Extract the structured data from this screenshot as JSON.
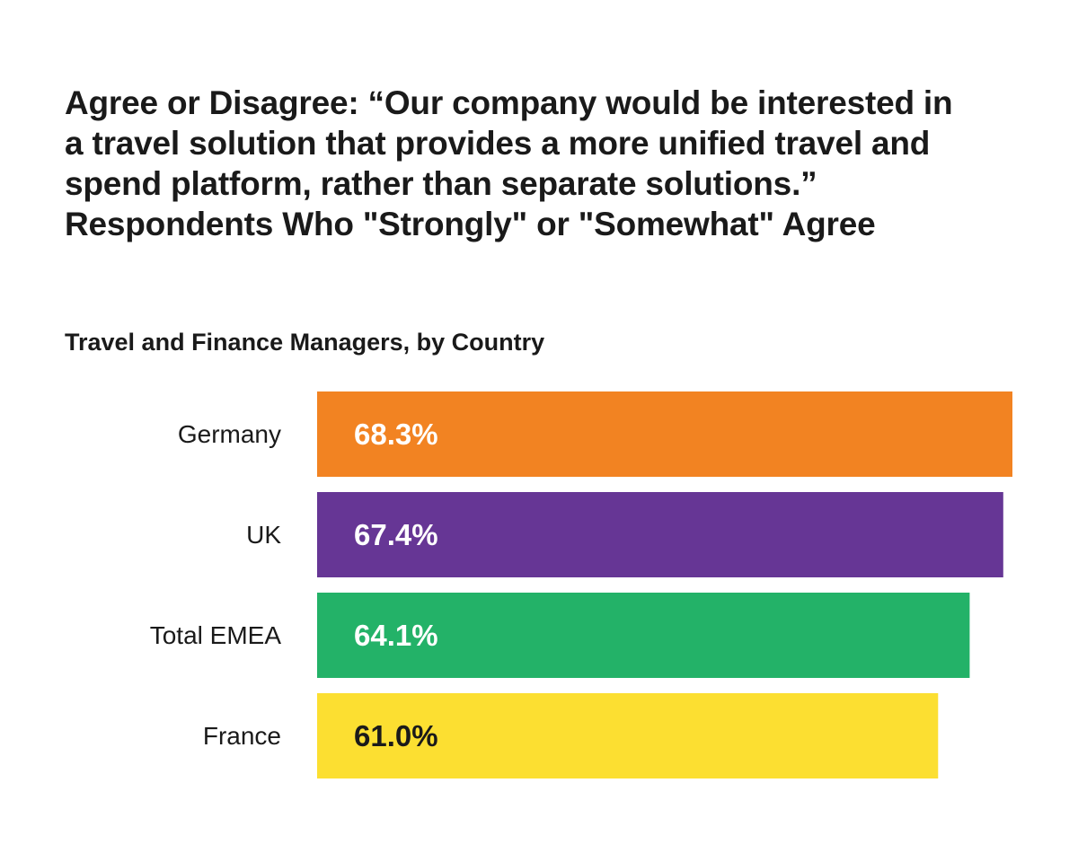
{
  "title_lines": [
    "Agree or Disagree: “Our company would be interested in",
    "a travel solution that provides a more unified travel and",
    "spend platform, rather than separate solutions.”",
    "Respondents Who \"Strongly\" or \"Somewhat\" Agree"
  ],
  "subtitle": "Travel and Finance Managers, by Country",
  "chart_data": {
    "type": "bar",
    "orientation": "horizontal",
    "categories": [
      "Germany",
      "UK",
      "Total EMEA",
      "France"
    ],
    "values": [
      68.3,
      67.4,
      64.1,
      61.0
    ],
    "value_labels": [
      "68.3%",
      "67.4%",
      "64.1%",
      "61.0%"
    ],
    "colors": [
      "#F28322",
      "#663695",
      "#23B268",
      "#FCDF31"
    ],
    "label_colors": [
      "#ffffff",
      "#ffffff",
      "#ffffff",
      "#1a1a1a"
    ],
    "xlabel": "",
    "ylabel": "",
    "xlim": [
      0,
      68.3
    ],
    "grid": false,
    "legend": "none"
  }
}
